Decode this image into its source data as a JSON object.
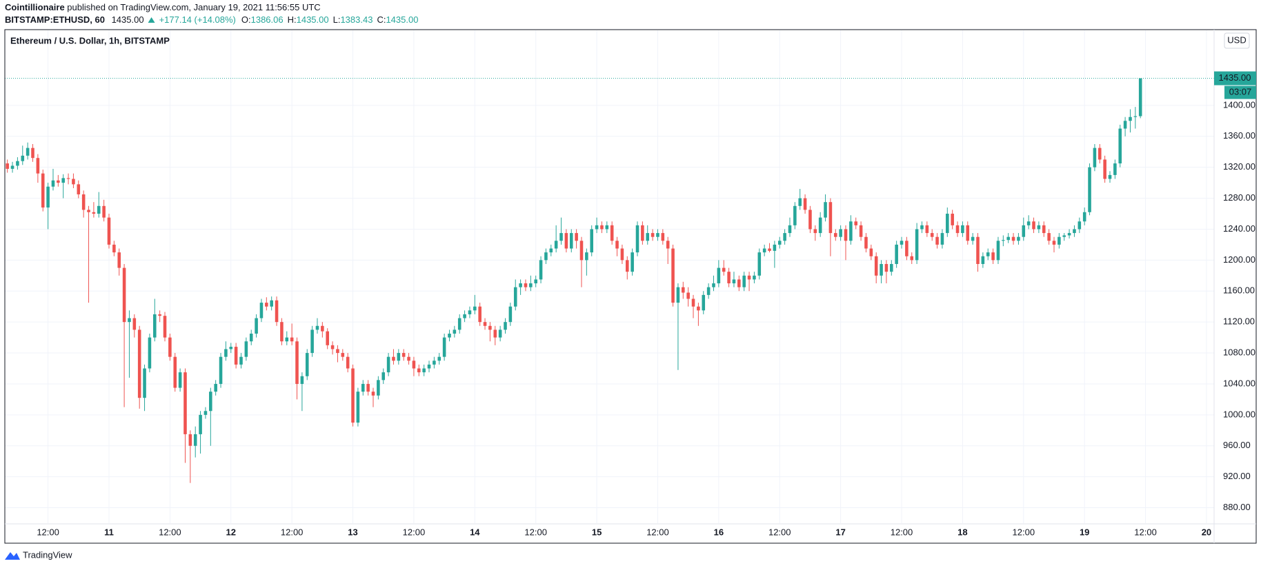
{
  "header": {
    "publisher": "Cointillionaire",
    "published": "published on TradingView.com, January 19, 2021 11:56:55 UTC",
    "symbol": "BITSTAMP:ETHUSD, 60",
    "last": "1435.00",
    "change": "+177.14 (+14.08%)",
    "open_label": "O:",
    "open": "1386.06",
    "high_label": "H:",
    "high": "1435.00",
    "low_label": "L:",
    "low": "1383.43",
    "close_label": "C:",
    "close": "1435.00"
  },
  "footer": {
    "brand": "TradingView"
  },
  "chart_data": {
    "type": "candlestick",
    "title": "Ethereum / U.S. Dollar, 1h, BITSTAMP",
    "currency_button": "USD",
    "last_price_label": "1435.00",
    "countdown": "03:07",
    "up_color": "#26a69a",
    "down_color": "#ef5350",
    "grid": true,
    "xlim": [
      -0.5,
      237.5
    ],
    "ylim": [
      860,
      1497
    ],
    "yticks": [
      {
        "value": 880,
        "label": "880.00"
      },
      {
        "value": 920,
        "label": "920.00"
      },
      {
        "value": 960,
        "label": "960.00"
      },
      {
        "value": 1000,
        "label": "1000.00"
      },
      {
        "value": 1040,
        "label": "1040.00"
      },
      {
        "value": 1080,
        "label": "1080.00"
      },
      {
        "value": 1120,
        "label": "1120.00"
      },
      {
        "value": 1160,
        "label": "1160.00"
      },
      {
        "value": 1200,
        "label": "1200.00"
      },
      {
        "value": 1240,
        "label": "1240.00"
      },
      {
        "value": 1280,
        "label": "1280.00"
      },
      {
        "value": 1320,
        "label": "1320.00"
      },
      {
        "value": 1360,
        "label": "1360.00"
      },
      {
        "value": 1400,
        "label": "1400.00"
      }
    ],
    "xticks": [
      {
        "value": 8,
        "label": "12:00"
      },
      {
        "value": 20,
        "label": "11"
      },
      {
        "value": 32,
        "label": "12:00"
      },
      {
        "value": 44,
        "label": "12"
      },
      {
        "value": 56,
        "label": "12:00"
      },
      {
        "value": 68,
        "label": "13"
      },
      {
        "value": 80,
        "label": "12:00"
      },
      {
        "value": 92,
        "label": "14"
      },
      {
        "value": 104,
        "label": "12:00"
      },
      {
        "value": 116,
        "label": "15"
      },
      {
        "value": 128,
        "label": "12:00"
      },
      {
        "value": 140,
        "label": "16"
      },
      {
        "value": 152,
        "label": "12:00"
      },
      {
        "value": 164,
        "label": "17"
      },
      {
        "value": 176,
        "label": "12:00"
      },
      {
        "value": 188,
        "label": "18"
      },
      {
        "value": 200,
        "label": "12:00"
      },
      {
        "value": 212,
        "label": "19"
      },
      {
        "value": 224,
        "label": "12:00"
      },
      {
        "value": 236,
        "label": "20"
      }
    ],
    "ohlc": [
      [
        1325,
        1330,
        1313,
        1318
      ],
      [
        1318,
        1327,
        1313,
        1322
      ],
      [
        1322,
        1333,
        1317,
        1328
      ],
      [
        1328,
        1348,
        1323,
        1335
      ],
      [
        1335,
        1352,
        1330,
        1345
      ],
      [
        1345,
        1350,
        1327,
        1332
      ],
      [
        1332,
        1337,
        1300,
        1312
      ],
      [
        1312,
        1317,
        1263,
        1268
      ],
      [
        1268,
        1300,
        1240,
        1295
      ],
      [
        1295,
        1318,
        1290,
        1303
      ],
      [
        1303,
        1310,
        1295,
        1300
      ],
      [
        1300,
        1311,
        1280,
        1306
      ],
      [
        1306,
        1312,
        1298,
        1305
      ],
      [
        1305,
        1312,
        1293,
        1298
      ],
      [
        1298,
        1303,
        1280,
        1285
      ],
      [
        1285,
        1290,
        1255,
        1265
      ],
      [
        1265,
        1270,
        1145,
        1262
      ],
      [
        1262,
        1275,
        1255,
        1260
      ],
      [
        1260,
        1288,
        1255,
        1270
      ],
      [
        1270,
        1278,
        1250,
        1255
      ],
      [
        1255,
        1260,
        1215,
        1220
      ],
      [
        1220,
        1225,
        1205,
        1210
      ],
      [
        1210,
        1215,
        1180,
        1190
      ],
      [
        1190,
        1195,
        1010,
        1120
      ],
      [
        1120,
        1135,
        1048,
        1125
      ],
      [
        1125,
        1130,
        1100,
        1110
      ],
      [
        1110,
        1115,
        1008,
        1022
      ],
      [
        1022,
        1065,
        1005,
        1060
      ],
      [
        1060,
        1105,
        1055,
        1100
      ],
      [
        1100,
        1150,
        1095,
        1130
      ],
      [
        1130,
        1135,
        1120,
        1128
      ],
      [
        1128,
        1133,
        1095,
        1100
      ],
      [
        1100,
        1105,
        1070,
        1075
      ],
      [
        1075,
        1080,
        1030,
        1035
      ],
      [
        1035,
        1060,
        1030,
        1055
      ],
      [
        1055,
        1060,
        938,
        975
      ],
      [
        975,
        980,
        912,
        960
      ],
      [
        960,
        985,
        945,
        975
      ],
      [
        975,
        1005,
        950,
        1000
      ],
      [
        1000,
        1010,
        995,
        1005
      ],
      [
        1005,
        1035,
        960,
        1030
      ],
      [
        1030,
        1045,
        1025,
        1040
      ],
      [
        1040,
        1080,
        1035,
        1075
      ],
      [
        1075,
        1095,
        1070,
        1085
      ],
      [
        1085,
        1093,
        1080,
        1088
      ],
      [
        1088,
        1093,
        1060,
        1065
      ],
      [
        1065,
        1080,
        1060,
        1075
      ],
      [
        1075,
        1100,
        1070,
        1095
      ],
      [
        1095,
        1110,
        1090,
        1105
      ],
      [
        1105,
        1130,
        1100,
        1125
      ],
      [
        1125,
        1150,
        1120,
        1145
      ],
      [
        1145,
        1152,
        1135,
        1140
      ],
      [
        1140,
        1153,
        1135,
        1148
      ],
      [
        1148,
        1153,
        1115,
        1120
      ],
      [
        1120,
        1125,
        1090,
        1095
      ],
      [
        1095,
        1108,
        1090,
        1100
      ],
      [
        1100,
        1118,
        1090,
        1095
      ],
      [
        1095,
        1100,
        1020,
        1040
      ],
      [
        1040,
        1055,
        1005,
        1050
      ],
      [
        1050,
        1085,
        1045,
        1080
      ],
      [
        1080,
        1115,
        1075,
        1110
      ],
      [
        1110,
        1125,
        1105,
        1115
      ],
      [
        1115,
        1120,
        1100,
        1108
      ],
      [
        1108,
        1112,
        1085,
        1090
      ],
      [
        1090,
        1095,
        1078,
        1085
      ],
      [
        1085,
        1090,
        1068,
        1080
      ],
      [
        1080,
        1085,
        1070,
        1075
      ],
      [
        1075,
        1080,
        1055,
        1060
      ],
      [
        1060,
        1065,
        985,
        990
      ],
      [
        990,
        1035,
        985,
        1030
      ],
      [
        1030,
        1045,
        1025,
        1040
      ],
      [
        1040,
        1045,
        1025,
        1030
      ],
      [
        1030,
        1035,
        1010,
        1025
      ],
      [
        1025,
        1050,
        1020,
        1045
      ],
      [
        1045,
        1060,
        1040,
        1055
      ],
      [
        1055,
        1080,
        1050,
        1075
      ],
      [
        1075,
        1085,
        1065,
        1070
      ],
      [
        1070,
        1085,
        1065,
        1080
      ],
      [
        1080,
        1085,
        1070,
        1075
      ],
      [
        1075,
        1080,
        1065,
        1070
      ],
      [
        1070,
        1075,
        1050,
        1060
      ],
      [
        1060,
        1065,
        1050,
        1055
      ],
      [
        1055,
        1065,
        1050,
        1060
      ],
      [
        1060,
        1070,
        1055,
        1065
      ],
      [
        1065,
        1075,
        1060,
        1070
      ],
      [
        1070,
        1080,
        1065,
        1075
      ],
      [
        1075,
        1105,
        1070,
        1100
      ],
      [
        1100,
        1110,
        1095,
        1105
      ],
      [
        1105,
        1115,
        1100,
        1110
      ],
      [
        1110,
        1130,
        1105,
        1125
      ],
      [
        1125,
        1135,
        1120,
        1130
      ],
      [
        1130,
        1140,
        1125,
        1135
      ],
      [
        1135,
        1155,
        1130,
        1140
      ],
      [
        1140,
        1145,
        1115,
        1120
      ],
      [
        1120,
        1125,
        1110,
        1115
      ],
      [
        1115,
        1120,
        1095,
        1110
      ],
      [
        1110,
        1115,
        1090,
        1100
      ],
      [
        1100,
        1115,
        1095,
        1110
      ],
      [
        1110,
        1125,
        1105,
        1120
      ],
      [
        1120,
        1145,
        1115,
        1140
      ],
      [
        1140,
        1175,
        1135,
        1165
      ],
      [
        1165,
        1175,
        1155,
        1170
      ],
      [
        1170,
        1175,
        1160,
        1165
      ],
      [
        1165,
        1180,
        1160,
        1170
      ],
      [
        1170,
        1180,
        1165,
        1175
      ],
      [
        1175,
        1205,
        1170,
        1200
      ],
      [
        1200,
        1215,
        1195,
        1210
      ],
      [
        1210,
        1220,
        1205,
        1215
      ],
      [
        1215,
        1245,
        1210,
        1225
      ],
      [
        1225,
        1255,
        1220,
        1235
      ],
      [
        1235,
        1240,
        1210,
        1215
      ],
      [
        1215,
        1240,
        1210,
        1235
      ],
      [
        1235,
        1240,
        1215,
        1225
      ],
      [
        1225,
        1230,
        1165,
        1200
      ],
      [
        1200,
        1215,
        1180,
        1210
      ],
      [
        1210,
        1245,
        1205,
        1240
      ],
      [
        1240,
        1255,
        1235,
        1245
      ],
      [
        1245,
        1250,
        1235,
        1240
      ],
      [
        1240,
        1250,
        1235,
        1245
      ],
      [
        1245,
        1250,
        1220,
        1225
      ],
      [
        1225,
        1230,
        1205,
        1215
      ],
      [
        1215,
        1220,
        1195,
        1200
      ],
      [
        1200,
        1205,
        1175,
        1185
      ],
      [
        1185,
        1215,
        1180,
        1210
      ],
      [
        1210,
        1250,
        1205,
        1245
      ],
      [
        1245,
        1250,
        1220,
        1225
      ],
      [
        1225,
        1245,
        1220,
        1235
      ],
      [
        1235,
        1240,
        1225,
        1230
      ],
      [
        1230,
        1240,
        1225,
        1235
      ],
      [
        1235,
        1240,
        1220,
        1225
      ],
      [
        1225,
        1230,
        1195,
        1215
      ],
      [
        1215,
        1220,
        1140,
        1145
      ],
      [
        1145,
        1170,
        1058,
        1165
      ],
      [
        1165,
        1172,
        1150,
        1158
      ],
      [
        1158,
        1165,
        1140,
        1150
      ],
      [
        1150,
        1155,
        1125,
        1140
      ],
      [
        1140,
        1145,
        1115,
        1135
      ],
      [
        1135,
        1160,
        1130,
        1155
      ],
      [
        1155,
        1170,
        1150,
        1165
      ],
      [
        1165,
        1180,
        1160,
        1170
      ],
      [
        1170,
        1200,
        1165,
        1190
      ],
      [
        1190,
        1200,
        1180,
        1185
      ],
      [
        1185,
        1190,
        1165,
        1170
      ],
      [
        1170,
        1185,
        1165,
        1175
      ],
      [
        1175,
        1180,
        1160,
        1165
      ],
      [
        1165,
        1185,
        1160,
        1180
      ],
      [
        1180,
        1185,
        1160,
        1175
      ],
      [
        1175,
        1185,
        1170,
        1180
      ],
      [
        1180,
        1215,
        1175,
        1210
      ],
      [
        1210,
        1220,
        1205,
        1215
      ],
      [
        1215,
        1222,
        1210,
        1212
      ],
      [
        1212,
        1225,
        1190,
        1220
      ],
      [
        1220,
        1230,
        1215,
        1225
      ],
      [
        1225,
        1240,
        1220,
        1235
      ],
      [
        1235,
        1255,
        1230,
        1245
      ],
      [
        1245,
        1275,
        1240,
        1270
      ],
      [
        1270,
        1292,
        1265,
        1280
      ],
      [
        1280,
        1285,
        1260,
        1265
      ],
      [
        1265,
        1270,
        1235,
        1240
      ],
      [
        1240,
        1245,
        1225,
        1235
      ],
      [
        1235,
        1262,
        1230,
        1255
      ],
      [
        1255,
        1285,
        1250,
        1275
      ],
      [
        1275,
        1280,
        1205,
        1235
      ],
      [
        1235,
        1240,
        1225,
        1230
      ],
      [
        1230,
        1245,
        1225,
        1240
      ],
      [
        1240,
        1245,
        1200,
        1225
      ],
      [
        1225,
        1258,
        1220,
        1250
      ],
      [
        1250,
        1255,
        1240,
        1245
      ],
      [
        1245,
        1250,
        1225,
        1230
      ],
      [
        1230,
        1235,
        1210,
        1215
      ],
      [
        1215,
        1220,
        1200,
        1205
      ],
      [
        1205,
        1210,
        1170,
        1180
      ],
      [
        1180,
        1200,
        1170,
        1195
      ],
      [
        1195,
        1200,
        1170,
        1185
      ],
      [
        1185,
        1200,
        1180,
        1195
      ],
      [
        1195,
        1225,
        1190,
        1220
      ],
      [
        1220,
        1230,
        1215,
        1225
      ],
      [
        1225,
        1230,
        1200,
        1205
      ],
      [
        1205,
        1210,
        1195,
        1200
      ],
      [
        1200,
        1248,
        1195,
        1240
      ],
      [
        1240,
        1250,
        1235,
        1245
      ],
      [
        1245,
        1250,
        1230,
        1235
      ],
      [
        1235,
        1240,
        1225,
        1230
      ],
      [
        1230,
        1235,
        1215,
        1220
      ],
      [
        1220,
        1240,
        1215,
        1235
      ],
      [
        1235,
        1268,
        1230,
        1260
      ],
      [
        1260,
        1265,
        1240,
        1245
      ],
      [
        1245,
        1250,
        1230,
        1235
      ],
      [
        1235,
        1250,
        1230,
        1245
      ],
      [
        1245,
        1250,
        1220,
        1225
      ],
      [
        1225,
        1235,
        1220,
        1230
      ],
      [
        1230,
        1235,
        1185,
        1195
      ],
      [
        1195,
        1210,
        1190,
        1205
      ],
      [
        1205,
        1215,
        1200,
        1210
      ],
      [
        1210,
        1215,
        1195,
        1200
      ],
      [
        1200,
        1230,
        1195,
        1225
      ],
      [
        1225,
        1232,
        1218,
        1226
      ],
      [
        1226,
        1235,
        1222,
        1230
      ],
      [
        1230,
        1235,
        1220,
        1225
      ],
      [
        1225,
        1235,
        1220,
        1230
      ],
      [
        1230,
        1255,
        1225,
        1245
      ],
      [
        1245,
        1258,
        1240,
        1250
      ],
      [
        1250,
        1255,
        1235,
        1240
      ],
      [
        1240,
        1250,
        1235,
        1245
      ],
      [
        1245,
        1250,
        1230,
        1235
      ],
      [
        1235,
        1240,
        1220,
        1225
      ],
      [
        1225,
        1230,
        1210,
        1220
      ],
      [
        1220,
        1235,
        1215,
        1230
      ],
      [
        1230,
        1235,
        1225,
        1232
      ],
      [
        1232,
        1240,
        1228,
        1235
      ],
      [
        1235,
        1245,
        1230,
        1240
      ],
      [
        1240,
        1255,
        1235,
        1250
      ],
      [
        1250,
        1268,
        1245,
        1262
      ],
      [
        1262,
        1325,
        1258,
        1320
      ],
      [
        1320,
        1350,
        1315,
        1345
      ],
      [
        1345,
        1350,
        1325,
        1330
      ],
      [
        1330,
        1335,
        1300,
        1305
      ],
      [
        1305,
        1315,
        1300,
        1310
      ],
      [
        1310,
        1330,
        1305,
        1325
      ],
      [
        1325,
        1375,
        1320,
        1370
      ],
      [
        1370,
        1385,
        1360,
        1380
      ],
      [
        1380,
        1395,
        1365,
        1385
      ],
      [
        1385,
        1398,
        1370,
        1386.06
      ],
      [
        1386.06,
        1435,
        1383.43,
        1435
      ]
    ]
  }
}
